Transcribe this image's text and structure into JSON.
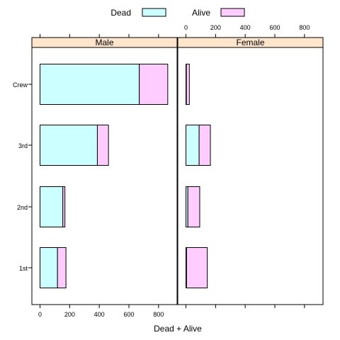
{
  "chart_data": {
    "type": "bar",
    "orientation": "horizontal",
    "stacked": true,
    "categories": [
      "Crew",
      "3rd",
      "2nd",
      "1st"
    ],
    "panels": [
      {
        "label": "Male",
        "series": [
          {
            "name": "Dead",
            "values": [
              670,
              387,
              154,
              118
            ]
          },
          {
            "name": "Alive",
            "values": [
              192,
              75,
              14,
              57
            ]
          }
        ]
      },
      {
        "label": "Female",
        "series": [
          {
            "name": "Dead",
            "values": [
              3,
              89,
              13,
              4
            ]
          },
          {
            "name": "Alive",
            "values": [
              20,
              76,
              80,
              140
            ]
          }
        ]
      }
    ],
    "legend": [
      {
        "name": "Dead",
        "color": "#ccffff"
      },
      {
        "name": "Alive",
        "color": "#ffccff"
      }
    ],
    "legend_position": "top",
    "xlabel": "Dead + Alive",
    "ylabel": "",
    "xlim": [
      -55,
      925
    ],
    "xticks": [
      0,
      200,
      400,
      600,
      800
    ],
    "grid": false,
    "colors": {
      "strip": "#ffe5cc",
      "frame": "#000000"
    }
  }
}
